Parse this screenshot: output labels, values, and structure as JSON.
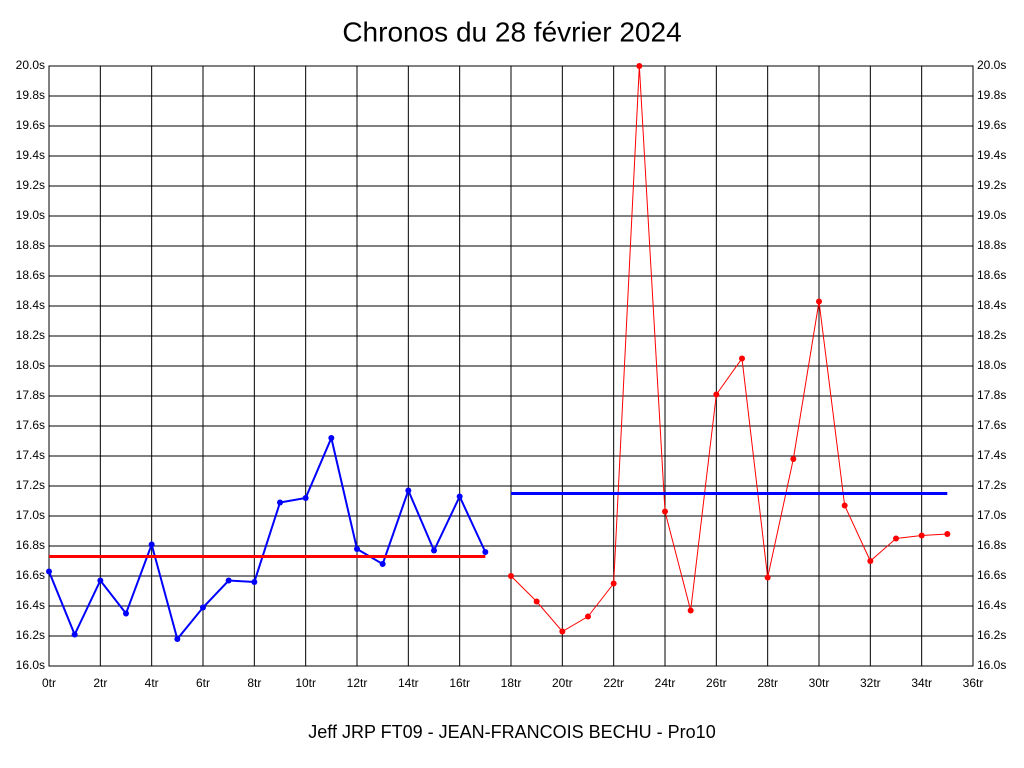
{
  "chart_data": {
    "type": "line",
    "title": "Chronos du 28 février 2024",
    "subtitle": "Jeff JRP FT09 - JEAN-FRANCOIS BECHU - Pro10",
    "xlim": [
      0,
      36
    ],
    "xticks": [
      {
        "value": 0,
        "label": "0tr"
      },
      {
        "value": 2,
        "label": "2tr"
      },
      {
        "value": 4,
        "label": "4tr"
      },
      {
        "value": 6,
        "label": "6tr"
      },
      {
        "value": 8,
        "label": "8tr"
      },
      {
        "value": 10,
        "label": "10tr"
      },
      {
        "value": 12,
        "label": "12tr"
      },
      {
        "value": 14,
        "label": "14tr"
      },
      {
        "value": 16,
        "label": "16tr"
      },
      {
        "value": 18,
        "label": "18tr"
      },
      {
        "value": 20,
        "label": "20tr"
      },
      {
        "value": 22,
        "label": "22tr"
      },
      {
        "value": 24,
        "label": "24tr"
      },
      {
        "value": 26,
        "label": "26tr"
      },
      {
        "value": 28,
        "label": "28tr"
      },
      {
        "value": 30,
        "label": "30tr"
      },
      {
        "value": 32,
        "label": "32tr"
      },
      {
        "value": 34,
        "label": "34tr"
      },
      {
        "value": 36,
        "label": "36tr"
      }
    ],
    "ylim": [
      16.0,
      20.0
    ],
    "yticks": [
      {
        "value": 16.0,
        "label": "16.0s"
      },
      {
        "value": 16.2,
        "label": "16.2s"
      },
      {
        "value": 16.4,
        "label": "16.4s"
      },
      {
        "value": 16.6,
        "label": "16.6s"
      },
      {
        "value": 16.8,
        "label": "16.8s"
      },
      {
        "value": 17.0,
        "label": "17.0s"
      },
      {
        "value": 17.2,
        "label": "17.2s"
      },
      {
        "value": 17.4,
        "label": "17.4s"
      },
      {
        "value": 17.6,
        "label": "17.6s"
      },
      {
        "value": 17.8,
        "label": "17.8s"
      },
      {
        "value": 18.0,
        "label": "18.0s"
      },
      {
        "value": 18.2,
        "label": "18.2s"
      },
      {
        "value": 18.4,
        "label": "18.4s"
      },
      {
        "value": 18.6,
        "label": "18.6s"
      },
      {
        "value": 18.8,
        "label": "18.8s"
      },
      {
        "value": 19.0,
        "label": "19.0s"
      },
      {
        "value": 19.2,
        "label": "19.2s"
      },
      {
        "value": 19.4,
        "label": "19.4s"
      },
      {
        "value": 19.6,
        "label": "19.6s"
      },
      {
        "value": 19.8,
        "label": "19.8s"
      },
      {
        "value": 20.0,
        "label": "20.0s"
      }
    ],
    "grid": true,
    "series": [
      {
        "color": "#0000ff",
        "markers": true,
        "x": [
          0,
          1,
          2,
          3,
          4,
          5,
          6,
          7,
          8,
          9,
          10,
          11,
          12,
          13,
          14,
          15,
          16,
          17
        ],
        "values": [
          16.63,
          16.21,
          16.57,
          16.35,
          16.81,
          16.18,
          16.39,
          16.57,
          16.56,
          17.09,
          17.12,
          17.52,
          16.78,
          16.68,
          17.17,
          16.77,
          17.13,
          16.76
        ]
      },
      {
        "color": "#ff0000",
        "markers": true,
        "x": [
          18,
          19,
          20,
          21,
          22,
          23,
          24,
          25,
          26,
          27,
          28,
          29,
          30,
          31,
          32,
          33,
          34,
          35
        ],
        "values": [
          16.6,
          16.43,
          16.23,
          16.33,
          16.55,
          20.0,
          17.03,
          16.37,
          17.81,
          18.05,
          16.59,
          17.38,
          18.43,
          17.07,
          16.7,
          16.85,
          16.87,
          16.88
        ]
      },
      {
        "color": "#ff0000",
        "markers": false,
        "x": [
          0,
          17
        ],
        "values": [
          16.73,
          16.73
        ]
      },
      {
        "color": "#0000ff",
        "markers": false,
        "x": [
          18,
          35
        ],
        "values": [
          17.15,
          17.15
        ]
      }
    ]
  }
}
